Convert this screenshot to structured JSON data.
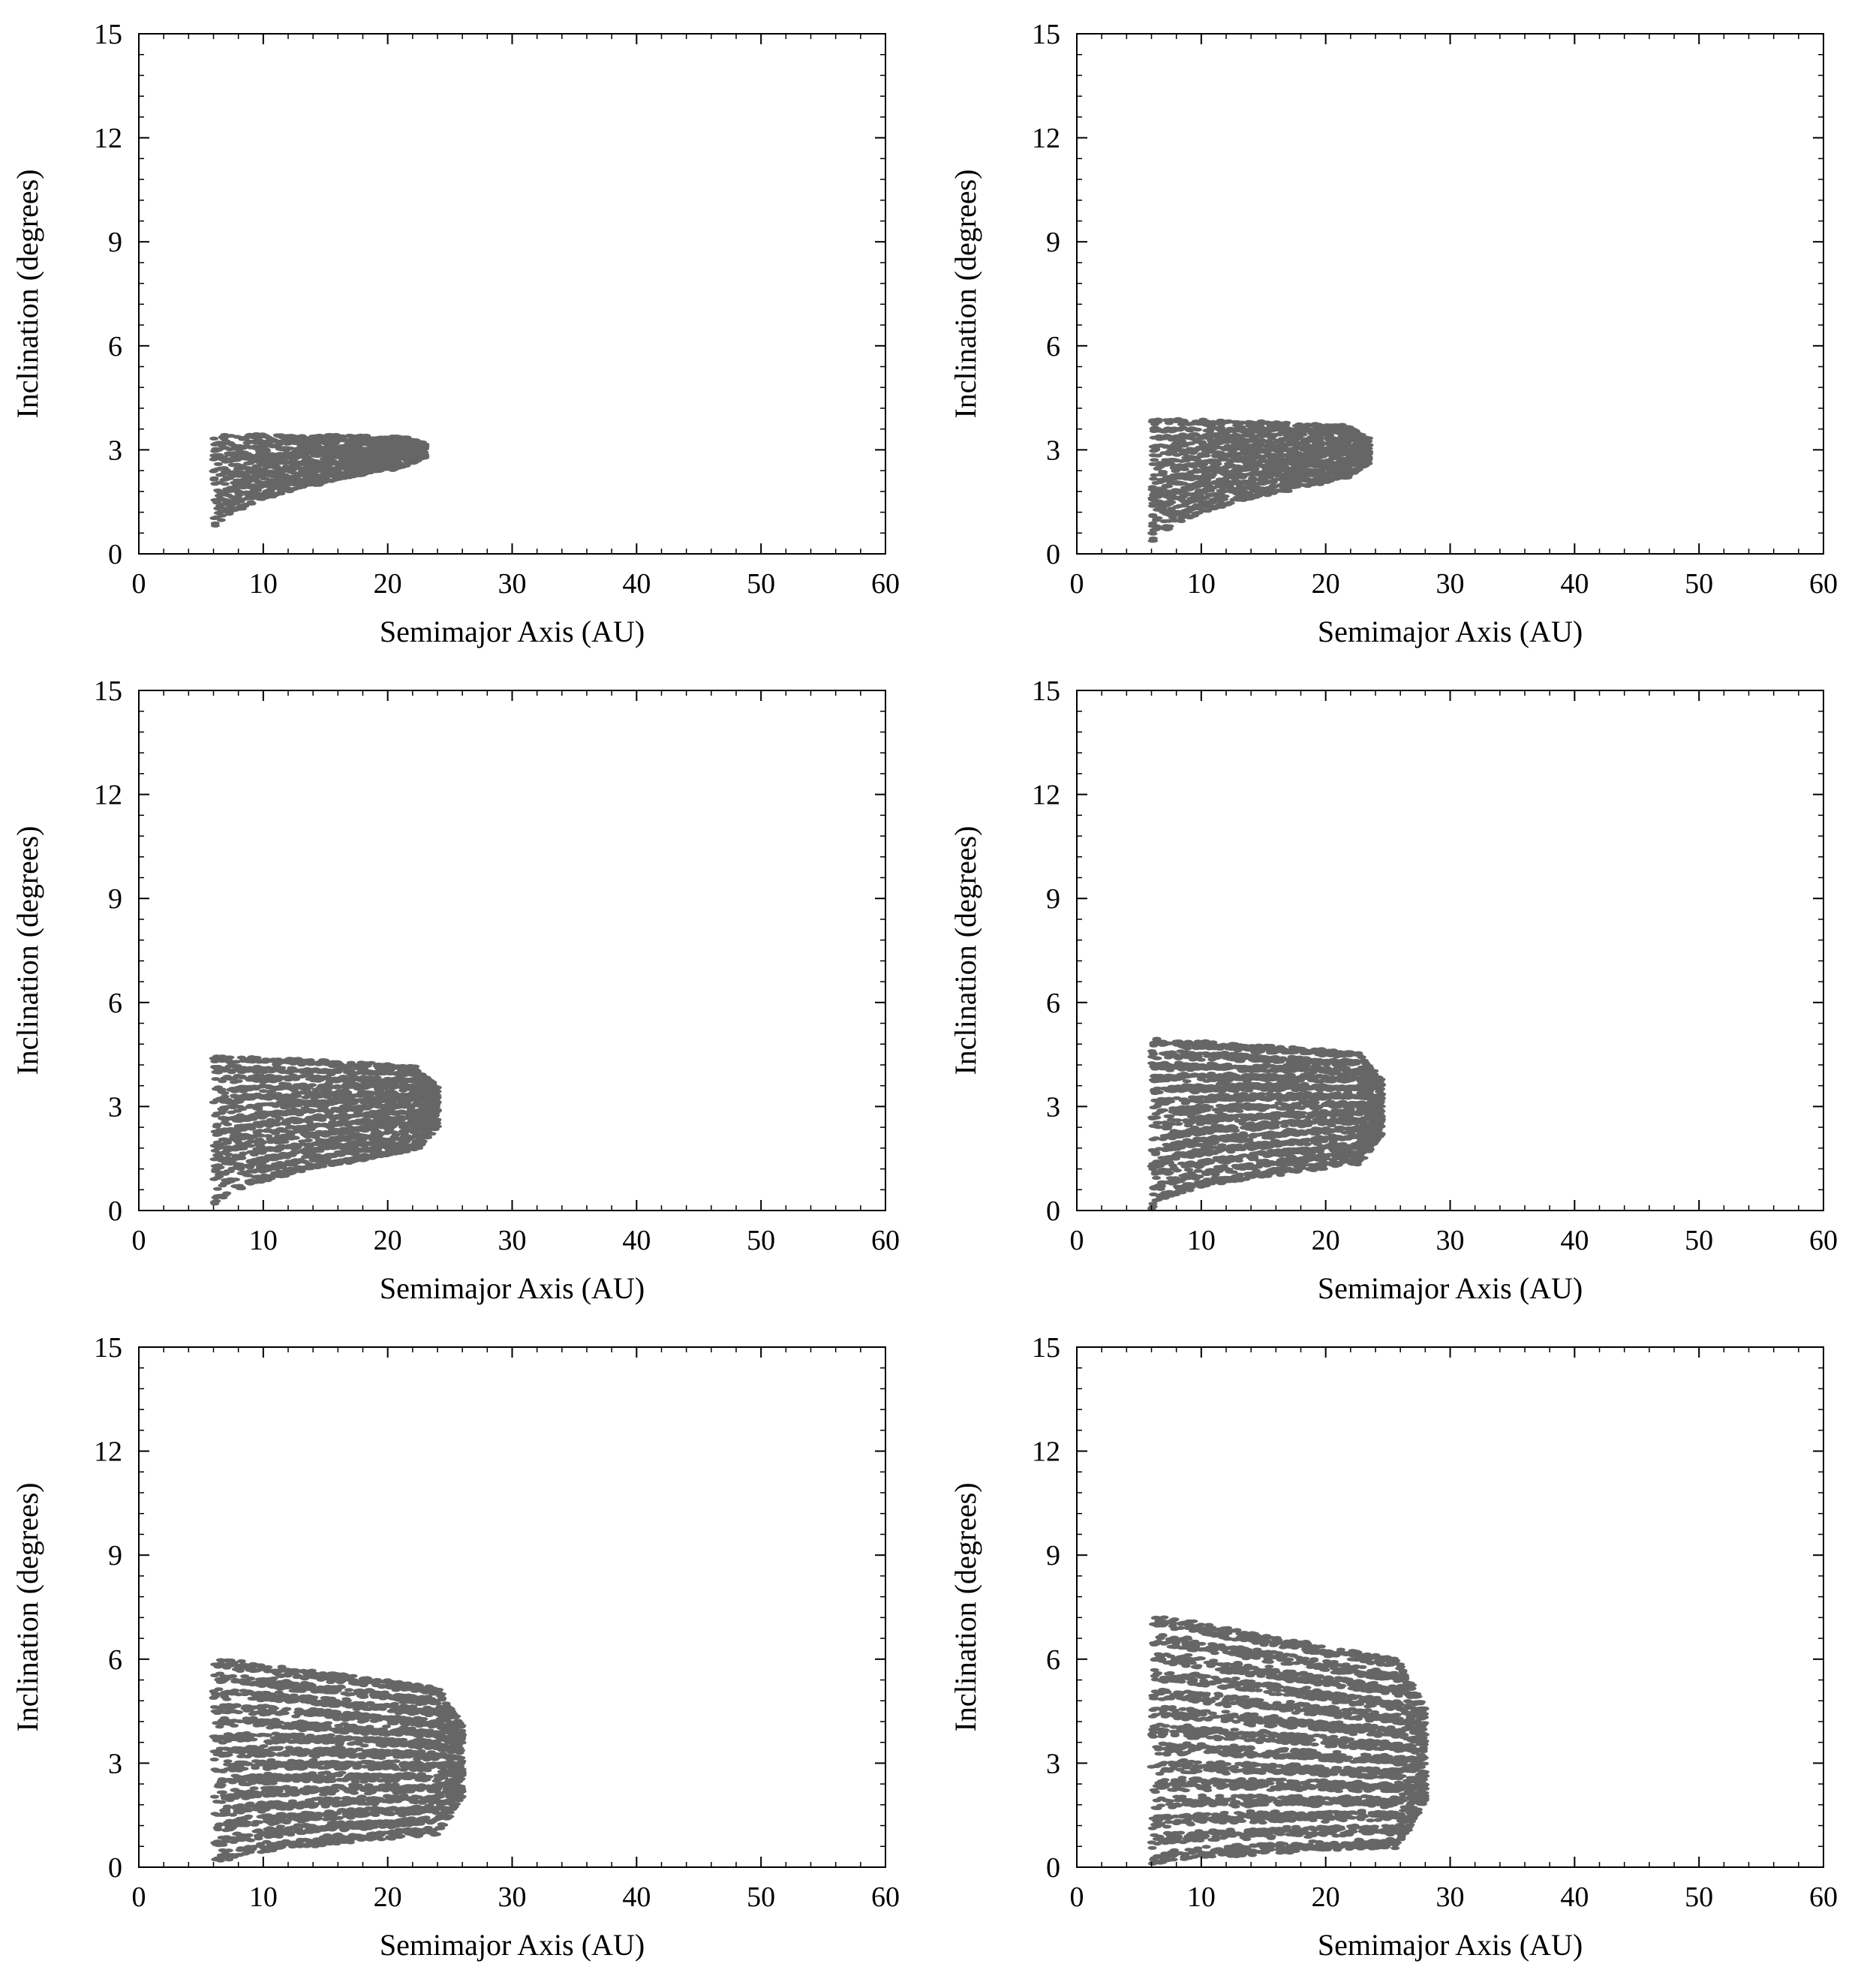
{
  "chart_data": [
    {
      "type": "scatter",
      "panel": "top-left",
      "xlabel": "Semimajor Axis (AU)",
      "ylabel": "Inclination (degrees)",
      "xlim": [
        0,
        60
      ],
      "ylim": [
        0,
        15
      ],
      "xticks": [
        0,
        10,
        20,
        30,
        40,
        50,
        60
      ],
      "yticks": [
        0,
        3,
        6,
        9,
        12,
        15
      ],
      "grid": false,
      "point_color": "#666666",
      "cloud": {
        "a_min": 6,
        "a_max": 23,
        "inc_top_near": 3.5,
        "inc_top_far": 3.4,
        "inc_low_near": 0.6,
        "inc_low_far": 2.6,
        "density": 0.25
      }
    },
    {
      "type": "scatter",
      "panel": "top-right",
      "xlabel": "Semimajor Axis (AU)",
      "ylabel": "Inclination (degrees)",
      "xlim": [
        0,
        60
      ],
      "ylim": [
        0,
        15
      ],
      "xticks": [
        0,
        10,
        20,
        30,
        40,
        50,
        60
      ],
      "yticks": [
        0,
        3,
        6,
        9,
        12,
        15
      ],
      "grid": false,
      "point_color": "#666666",
      "cloud": {
        "a_min": 6,
        "a_max": 23.5,
        "inc_top_near": 4.0,
        "inc_top_far": 3.7,
        "inc_low_near": 0.1,
        "inc_low_far": 2.3,
        "density": 0.4
      }
    },
    {
      "type": "scatter",
      "panel": "middle-left",
      "xlabel": "Semimajor Axis (AU)",
      "ylabel": "Inclination (degrees)",
      "xlim": [
        0,
        60
      ],
      "ylim": [
        0,
        15
      ],
      "xticks": [
        0,
        10,
        20,
        30,
        40,
        50,
        60
      ],
      "yticks": [
        0,
        3,
        6,
        9,
        12,
        15
      ],
      "grid": false,
      "point_color": "#666666",
      "cloud": {
        "a_min": 6,
        "a_max": 24,
        "inc_top_near": 4.6,
        "inc_top_far": 4.2,
        "inc_low_near": 0.0,
        "inc_low_far": 1.8,
        "density": 0.55
      }
    },
    {
      "type": "scatter",
      "panel": "middle-right",
      "xlabel": "Semimajor Axis (AU)",
      "ylabel": "Inclination (degrees)",
      "xlim": [
        0,
        60
      ],
      "ylim": [
        0,
        15
      ],
      "xticks": [
        0,
        10,
        20,
        30,
        40,
        50,
        60
      ],
      "yticks": [
        0,
        3,
        6,
        9,
        12,
        15
      ],
      "grid": false,
      "point_color": "#666666",
      "cloud": {
        "a_min": 6,
        "a_max": 24.5,
        "inc_top_near": 5.1,
        "inc_top_far": 4.6,
        "inc_low_near": 0.0,
        "inc_low_far": 1.4,
        "density": 0.7
      }
    },
    {
      "type": "scatter",
      "panel": "bottom-left",
      "xlabel": "Semimajor Axis (AU)",
      "ylabel": "Inclination (degrees)",
      "xlim": [
        0,
        60
      ],
      "ylim": [
        0,
        15
      ],
      "xticks": [
        0,
        10,
        20,
        30,
        40,
        50,
        60
      ],
      "yticks": [
        0,
        3,
        6,
        9,
        12,
        15
      ],
      "grid": false,
      "point_color": "#666666",
      "cloud": {
        "a_min": 6,
        "a_max": 26,
        "inc_top_near": 6.2,
        "inc_top_far": 5.2,
        "inc_low_near": 0.0,
        "inc_low_far": 1.0,
        "density": 0.85
      }
    },
    {
      "type": "scatter",
      "panel": "bottom-right",
      "xlabel": "Semimajor Axis (AU)",
      "ylabel": "Inclination (degrees)",
      "xlim": [
        0,
        60
      ],
      "ylim": [
        0,
        15
      ],
      "xticks": [
        0,
        10,
        20,
        30,
        40,
        50,
        60
      ],
      "yticks": [
        0,
        3,
        6,
        9,
        12,
        15
      ],
      "grid": false,
      "point_color": "#666666",
      "cloud": {
        "a_min": 6,
        "a_max": 28,
        "inc_top_near": 7.5,
        "inc_top_far": 6.0,
        "inc_low_near": 0.0,
        "inc_low_far": 0.6,
        "density": 0.95
      }
    }
  ]
}
